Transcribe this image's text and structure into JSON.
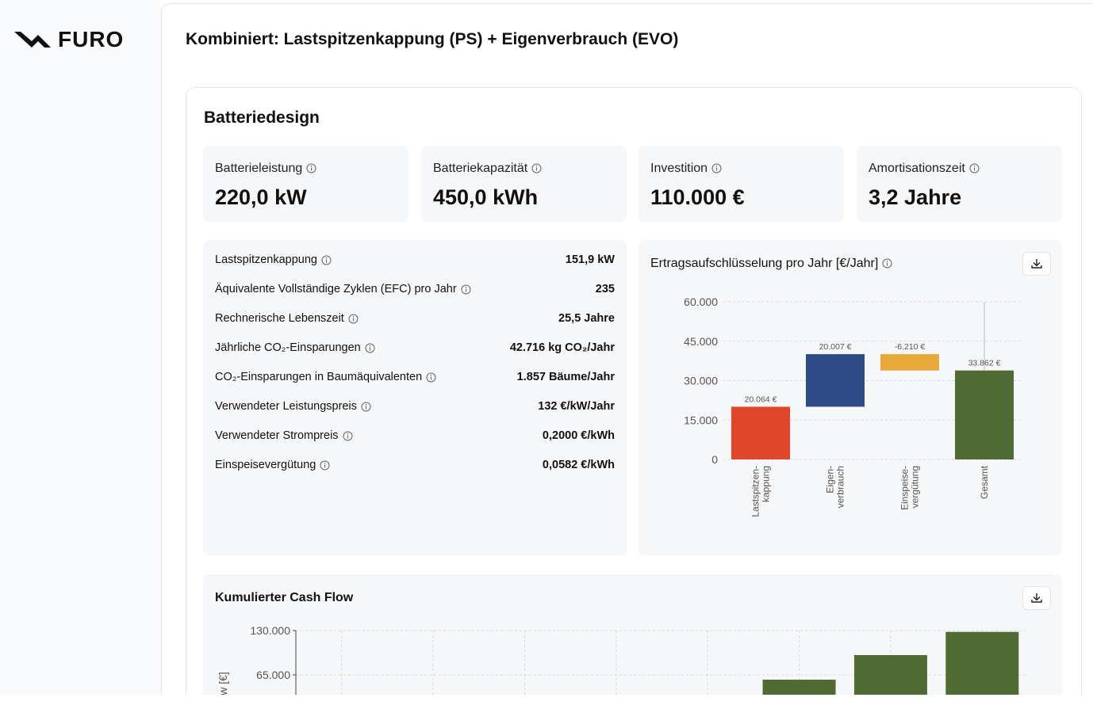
{
  "sidebar": {
    "logo": "FURO"
  },
  "header": {
    "title": "Kombiniert: Lastspitzenkappung (PS) + Eigenverbrauch (EVO)"
  },
  "section": {
    "title": "Batteriedesign"
  },
  "kpis": [
    {
      "label": "Batterieleistung",
      "value": "220,0 kW"
    },
    {
      "label": "Batteriekapazität",
      "value": "450,0 kWh"
    },
    {
      "label": "Investition",
      "value": "110.000 €"
    },
    {
      "label": "Amortisationszeit",
      "value": "3,2 Jahre"
    }
  ],
  "details": [
    {
      "label": "Lastspitzenkappung",
      "value": "151,9 kW"
    },
    {
      "label": "Äquivalente Vollständige Zyklen (EFC) pro Jahr",
      "value": "235"
    },
    {
      "label": "Rechnerische Lebenszeit",
      "value": "25,5 Jahre"
    },
    {
      "label": "Jährliche CO₂-Einsparungen",
      "value": "42.716 kg CO₂/Jahr"
    },
    {
      "label": "CO₂-Einsparungen in Baumäquivalenten",
      "value": "1.857 Bäume/Jahr"
    },
    {
      "label": "Verwendeter Leistungspreis",
      "value": "132 €/kW/Jahr"
    },
    {
      "label": "Verwendeter Strompreis",
      "value": "0,2000 €/kWh"
    },
    {
      "label": "Einspeisevergütung",
      "value": "0,0582 €/kWh"
    }
  ],
  "chart_data": [
    {
      "type": "waterfall",
      "title": "Ertragsaufschlüsselung pro Jahr [€/Jahr]",
      "categories": [
        [
          "Lastspitzen-",
          "kappung"
        ],
        [
          "Eigen-",
          "verbrauch"
        ],
        [
          "Einspeise-",
          "vergütung"
        ],
        [
          "Gesamt"
        ]
      ],
      "values": [
        20064,
        20007,
        -6210,
        33862
      ],
      "value_labels": [
        "20.064 €",
        "20.007 €",
        "-6.210 €",
        "33.862 €"
      ],
      "colors": [
        "#e0462a",
        "#2f4b87",
        "#e8a83a",
        "#4f6b33"
      ],
      "ylim": [
        0,
        60000
      ],
      "yticks": [
        0,
        {
          "value": 15000,
          "label": "15.000"
        },
        {
          "value": 30000,
          "label": "30.000"
        },
        {
          "value": 45000,
          "label": "45.000"
        },
        {
          "value": 60000,
          "label": "60.000"
        }
      ],
      "grid": true
    },
    {
      "type": "bar",
      "title": "Kumulierter Cash Flow",
      "y_label": "Cash Flow [€]",
      "categories": [
        null,
        null,
        null,
        null,
        null,
        null,
        null,
        null
      ],
      "values": [
        null,
        null,
        null,
        null,
        null,
        58000,
        94000,
        128000
      ],
      "color": "#4f6b33",
      "ylim": [
        0,
        130000
      ],
      "yticks": [
        {
          "value": 65000,
          "label": "65.000"
        },
        {
          "value": 130000,
          "label": "130.000"
        }
      ],
      "grid": true
    }
  ]
}
